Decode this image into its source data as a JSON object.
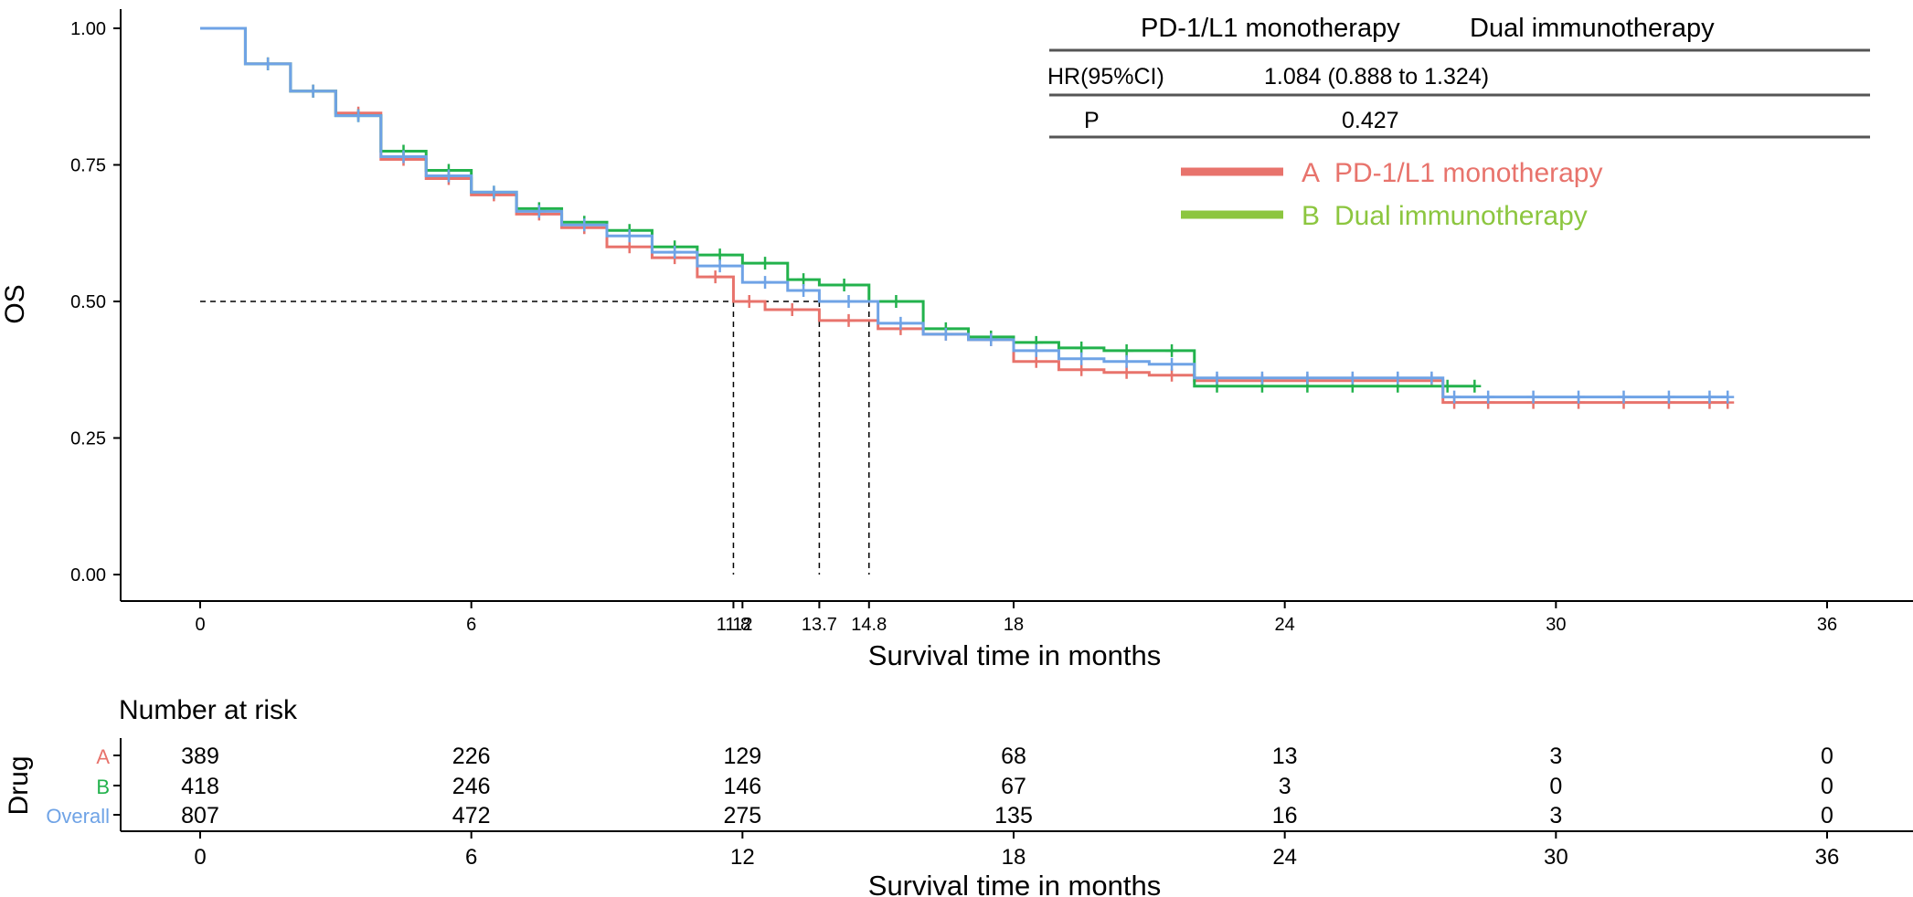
{
  "chart_data": {
    "type": "line",
    "subtype": "kaplan-meier",
    "ylabel": "OS",
    "xlabel": "Survival time in months",
    "xlim": [
      0,
      36
    ],
    "ylim": [
      0,
      1
    ],
    "x_ticks": [
      "0",
      "6",
      "12",
      "18",
      "24",
      "30",
      "36"
    ],
    "x_extra_ticks": [
      {
        "value": 11.8,
        "label": "11.8"
      },
      {
        "value": 13.7,
        "label": "13.7"
      },
      {
        "value": 14.8,
        "label": "14.8"
      }
    ],
    "y_ticks": [
      "0.00",
      "0.25",
      "0.50",
      "0.75",
      "1.00"
    ],
    "median_line_y": 0.5,
    "colors": {
      "A": "#e8736c",
      "B": "#22b24c",
      "Overall": "#6fa3e6",
      "legend_B": "#8cc63f",
      "axis": "#000000",
      "rule": "#555555"
    },
    "series": [
      {
        "name": "A",
        "color": "#e8736c",
        "x": [
          0,
          1,
          2,
          3,
          4,
          5,
          6,
          7,
          8,
          9,
          10,
          11,
          11.8,
          12.5,
          13.7,
          15,
          16,
          17,
          18,
          19,
          20,
          21,
          22,
          23,
          24,
          25,
          26,
          27,
          27.5,
          28,
          29,
          30,
          31,
          32,
          33,
          33.8
        ],
        "y": [
          1,
          0.935,
          0.885,
          0.845,
          0.76,
          0.725,
          0.695,
          0.66,
          0.635,
          0.6,
          0.58,
          0.545,
          0.5,
          0.485,
          0.465,
          0.45,
          0.44,
          0.43,
          0.39,
          0.375,
          0.37,
          0.365,
          0.355,
          0.355,
          0.355,
          0.355,
          0.355,
          0.355,
          0.315,
          0.315,
          0.315,
          0.315,
          0.315,
          0.315,
          0.315,
          0.315
        ]
      },
      {
        "name": "B",
        "color": "#22b24c",
        "x": [
          0,
          1,
          2,
          3,
          4,
          5,
          6,
          7,
          8,
          9,
          10,
          11,
          12,
          13,
          13.7,
          14.8,
          16,
          17,
          18,
          19,
          20,
          21,
          22,
          23,
          24,
          25,
          26,
          27,
          28.2
        ],
        "y": [
          1,
          0.935,
          0.885,
          0.84,
          0.775,
          0.74,
          0.7,
          0.67,
          0.645,
          0.63,
          0.6,
          0.585,
          0.57,
          0.54,
          0.53,
          0.5,
          0.45,
          0.435,
          0.425,
          0.415,
          0.41,
          0.41,
          0.345,
          0.345,
          0.345,
          0.345,
          0.345,
          0.345,
          0.345
        ]
      },
      {
        "name": "Overall",
        "color": "#6fa3e6",
        "x": [
          0,
          1,
          2,
          3,
          4,
          5,
          6,
          7,
          8,
          9,
          10,
          11,
          12,
          13,
          13.7,
          15,
          16,
          17,
          18,
          19,
          20,
          21,
          22,
          23,
          24,
          25,
          26,
          27,
          27.5,
          28,
          29,
          30,
          31,
          32,
          33,
          33.8
        ],
        "y": [
          1,
          0.935,
          0.885,
          0.84,
          0.765,
          0.73,
          0.7,
          0.665,
          0.64,
          0.62,
          0.59,
          0.565,
          0.535,
          0.52,
          0.5,
          0.46,
          0.44,
          0.43,
          0.41,
          0.395,
          0.39,
          0.385,
          0.36,
          0.36,
          0.36,
          0.36,
          0.36,
          0.36,
          0.325,
          0.325,
          0.325,
          0.325,
          0.325,
          0.325,
          0.325,
          0.325
        ]
      }
    ],
    "stats_table": {
      "col1": "PD-1/L1 monotherapy",
      "col2": "Dual immunotherapy",
      "rows": [
        {
          "label": "HR(95%CI)",
          "value": "1.084 (0.888 to 1.324)"
        },
        {
          "label": "P",
          "value": "0.427"
        }
      ]
    },
    "legend": [
      {
        "key": "A",
        "text": "PD-1/L1 monotherapy",
        "color": "#e8736c"
      },
      {
        "key": "B",
        "text": "Dual immunotherapy",
        "color": "#8cc63f"
      }
    ],
    "risk_table": {
      "title": "Number at risk",
      "ylabel": "Drug",
      "xlabel": "Survival time in months",
      "times": [
        0,
        6,
        12,
        18,
        24,
        30,
        36
      ],
      "time_labels": [
        "0",
        "6",
        "12",
        "18",
        "24",
        "30",
        "36"
      ],
      "rows": [
        {
          "label": "A",
          "color": "#e8736c",
          "values": [
            "389",
            "226",
            "129",
            "68",
            "13",
            "3",
            "0"
          ]
        },
        {
          "label": "B",
          "color": "#22b24c",
          "values": [
            "418",
            "246",
            "146",
            "67",
            "3",
            "0",
            "0"
          ]
        },
        {
          "label": "Overall",
          "color": "#6fa3e6",
          "values": [
            "807",
            "472",
            "275",
            "135",
            "16",
            "3",
            "0"
          ]
        }
      ]
    }
  }
}
